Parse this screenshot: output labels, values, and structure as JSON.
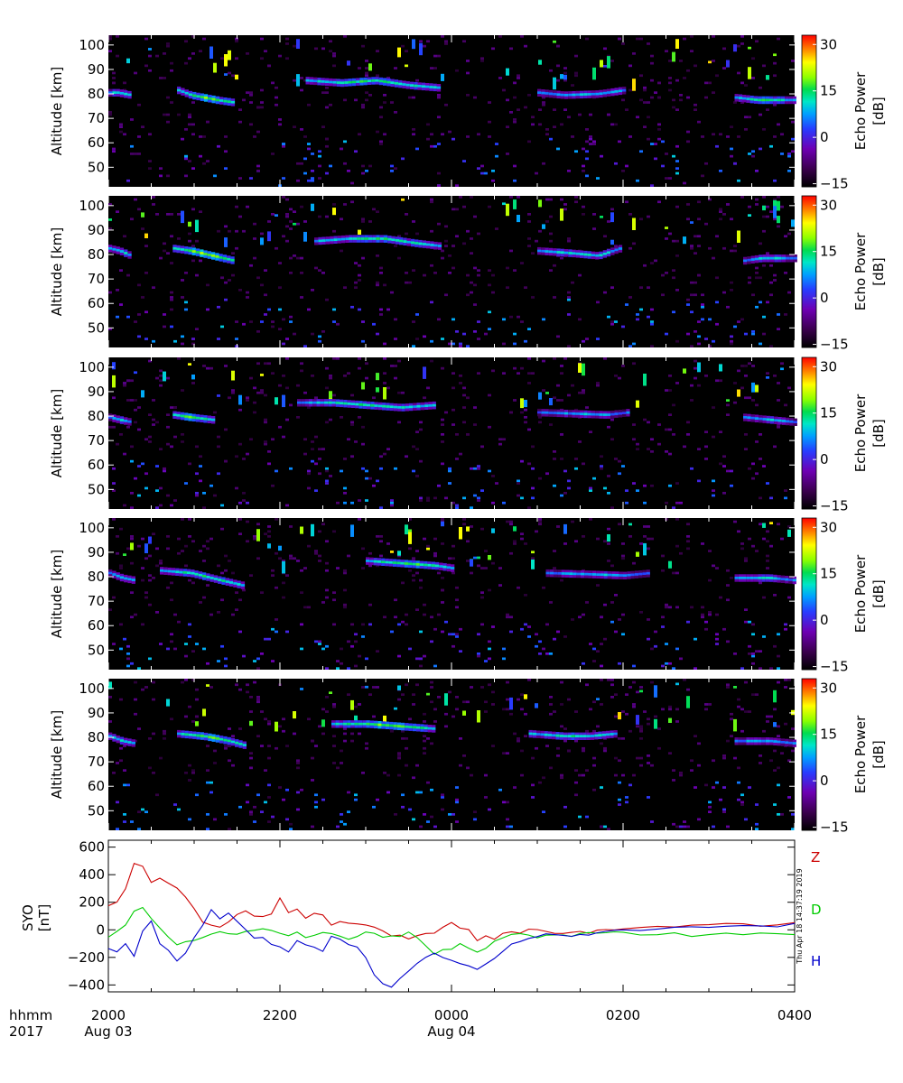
{
  "chart_data": [
    {
      "type": "heatmap",
      "panel": 1,
      "ylabel": "Altitude [km]",
      "yticks": [
        50,
        60,
        70,
        80,
        90,
        100
      ],
      "ylim": [
        42,
        104
      ],
      "colorbar": {
        "label_line1": "Echo Power",
        "label_line2": "[dB]",
        "ticks": [
          -15,
          0,
          15,
          30
        ],
        "range": [
          -16,
          33
        ]
      },
      "layers": [
        {
          "t": [
            0.0,
            0.1,
            0.25
          ],
          "alt": [
            81,
            81,
            80
          ],
          "power": 12
        },
        {
          "t": [
            0.8,
            0.95,
            1.25,
            1.45
          ],
          "alt": [
            82,
            80,
            78,
            77
          ],
          "power": 18
        },
        {
          "t": [
            2.3,
            2.7,
            3.1,
            3.5,
            3.85
          ],
          "alt": [
            86,
            85,
            86,
            84,
            83
          ],
          "power": 15
        },
        {
          "t": [
            5.0,
            5.3,
            5.7,
            6.0
          ],
          "alt": [
            81,
            80,
            80.5,
            82
          ],
          "power": 10
        },
        {
          "t": [
            7.3,
            7.55,
            8.0
          ],
          "alt": [
            79,
            78,
            78
          ],
          "power": 14
        }
      ]
    },
    {
      "type": "heatmap",
      "panel": 2,
      "ylabel": "Altitude [km]",
      "yticks": [
        50,
        60,
        70,
        80,
        90,
        100
      ],
      "ylim": [
        42,
        104
      ],
      "colorbar": {
        "label_line1": "Echo Power",
        "label_line2": "[dB]",
        "ticks": [
          -15,
          0,
          15,
          30
        ],
        "range": [
          -16,
          33
        ]
      },
      "layers": [
        {
          "t": [
            0.0,
            0.12,
            0.25
          ],
          "alt": [
            83,
            82,
            80
          ],
          "power": 12
        },
        {
          "t": [
            0.75,
            0.95,
            1.2,
            1.45
          ],
          "alt": [
            83,
            82,
            80,
            78
          ],
          "power": 20
        },
        {
          "t": [
            2.4,
            2.8,
            3.2,
            3.6,
            3.85
          ],
          "alt": [
            86,
            87,
            87,
            85,
            84
          ],
          "power": 14
        },
        {
          "t": [
            5.0,
            5.4,
            5.7,
            5.95
          ],
          "alt": [
            82,
            81,
            80,
            83
          ],
          "power": 12
        },
        {
          "t": [
            7.4,
            7.6,
            8.0
          ],
          "alt": [
            78,
            79,
            79
          ],
          "power": 10
        }
      ]
    },
    {
      "type": "heatmap",
      "panel": 3,
      "ylabel": "Altitude [km]",
      "yticks": [
        50,
        60,
        70,
        80,
        90,
        100
      ],
      "ylim": [
        42,
        104
      ],
      "colorbar": {
        "label_line1": "Echo Power",
        "label_line2": "[dB]",
        "ticks": [
          -15,
          0,
          15,
          30
        ],
        "range": [
          -16,
          33
        ]
      },
      "layers": [
        {
          "t": [
            0.0,
            0.12,
            0.25
          ],
          "alt": [
            80,
            79,
            78
          ],
          "power": 10
        },
        {
          "t": [
            0.75,
            0.95,
            1.2
          ],
          "alt": [
            81,
            80,
            79
          ],
          "power": 18
        },
        {
          "t": [
            2.2,
            2.6,
            3.0,
            3.4,
            3.8
          ],
          "alt": [
            86,
            86,
            85,
            84,
            85
          ],
          "power": 13
        },
        {
          "t": [
            5.0,
            5.4,
            5.8,
            6.05
          ],
          "alt": [
            82,
            81.5,
            81,
            82
          ],
          "power": 8
        },
        {
          "t": [
            7.4,
            7.7,
            8.0
          ],
          "alt": [
            80,
            79,
            78
          ],
          "power": 9
        }
      ]
    },
    {
      "type": "heatmap",
      "panel": 4,
      "ylabel": "Altitude [km]",
      "yticks": [
        50,
        60,
        70,
        80,
        90,
        100
      ],
      "ylim": [
        42,
        104
      ],
      "colorbar": {
        "label_line1": "Echo Power",
        "label_line2": "[dB]",
        "ticks": [
          -15,
          0,
          15,
          30
        ],
        "range": [
          -16,
          33
        ]
      },
      "layers": [
        {
          "t": [
            0.0,
            0.15,
            0.3
          ],
          "alt": [
            82,
            80,
            79
          ],
          "power": 10
        },
        {
          "t": [
            0.6,
            0.95,
            1.3,
            1.55
          ],
          "alt": [
            83,
            82,
            79,
            77
          ],
          "power": 15
        },
        {
          "t": [
            3.0,
            3.4,
            3.8,
            4.0
          ],
          "alt": [
            87,
            86,
            85,
            84
          ],
          "power": 16
        },
        {
          "t": [
            5.1,
            5.6,
            6.0,
            6.3
          ],
          "alt": [
            82,
            81.5,
            81,
            82
          ],
          "power": 9
        },
        {
          "t": [
            7.3,
            7.7,
            8.0
          ],
          "alt": [
            80,
            80,
            79
          ],
          "power": 10
        }
      ]
    },
    {
      "type": "heatmap",
      "panel": 5,
      "ylabel": "Altitude [km]",
      "yticks": [
        50,
        60,
        70,
        80,
        90,
        100
      ],
      "ylim": [
        42,
        104
      ],
      "colorbar": {
        "label_line1": "Echo Power",
        "label_line2": "[dB]",
        "ticks": [
          -15,
          0,
          15,
          30
        ],
        "range": [
          -16,
          33
        ]
      },
      "layers": [
        {
          "t": [
            0.0,
            0.15,
            0.3
          ],
          "alt": [
            81,
            79,
            78
          ],
          "power": 11
        },
        {
          "t": [
            0.8,
            1.1,
            1.4,
            1.6
          ],
          "alt": [
            82,
            81,
            79,
            77
          ],
          "power": 17
        },
        {
          "t": [
            2.6,
            3.0,
            3.4,
            3.8
          ],
          "alt": [
            86,
            86,
            85,
            84
          ],
          "power": 18
        },
        {
          "t": [
            4.9,
            5.3,
            5.6,
            5.9
          ],
          "alt": [
            82,
            81,
            81,
            82
          ],
          "power": 13
        },
        {
          "t": [
            7.3,
            7.7,
            8.0
          ],
          "alt": [
            79,
            79,
            78
          ],
          "power": 9
        }
      ]
    },
    {
      "type": "line",
      "ylabel_line1": "SYO",
      "ylabel_line2": "[nT]",
      "yticks": [
        -400,
        -200,
        0,
        200,
        400,
        600
      ],
      "ylim": [
        -450,
        650
      ],
      "x_unit": "hours after 2000 UT, 2017 Aug 03",
      "series": [
        {
          "name": "Z",
          "color": "#cc0000",
          "x": [
            0,
            0.1,
            0.2,
            0.3,
            0.4,
            0.5,
            0.6,
            0.7,
            0.8,
            0.9,
            1.0,
            1.1,
            1.2,
            1.3,
            1.4,
            1.5,
            1.6,
            1.7,
            1.8,
            1.9,
            2.0,
            2.1,
            2.2,
            2.3,
            2.4,
            2.5,
            2.6,
            2.7,
            2.8,
            2.9,
            3.0,
            3.1,
            3.2,
            3.3,
            3.4,
            3.5,
            3.6,
            3.7,
            3.8,
            3.9,
            4.0,
            4.1,
            4.2,
            4.3,
            4.4,
            4.5,
            4.6,
            4.7,
            4.8,
            4.9,
            5.0,
            5.1,
            5.2,
            5.3,
            5.4,
            5.5,
            5.6,
            5.7,
            5.8,
            5.9,
            6.0,
            6.2,
            6.4,
            6.6,
            6.8,
            7.0,
            7.2,
            7.4,
            7.6,
            7.8,
            8.0
          ],
          "y": [
            170,
            200,
            300,
            480,
            460,
            350,
            380,
            330,
            300,
            230,
            150,
            60,
            40,
            20,
            60,
            110,
            130,
            100,
            90,
            110,
            230,
            120,
            150,
            80,
            120,
            110,
            40,
            60,
            40,
            40,
            30,
            20,
            -10,
            -50,
            -30,
            -70,
            -40,
            -20,
            -30,
            20,
            60,
            10,
            0,
            -80,
            -50,
            -60,
            -20,
            -10,
            -30,
            0,
            10,
            -10,
            -20,
            -30,
            -20,
            -20,
            -20,
            -10,
            0,
            0,
            10,
            10,
            20,
            20,
            30,
            40,
            40,
            50,
            30,
            40,
            50
          ]
        },
        {
          "name": "D",
          "color": "#00cc00",
          "x": [
            0,
            0.1,
            0.2,
            0.3,
            0.4,
            0.5,
            0.6,
            0.7,
            0.8,
            0.9,
            1.0,
            1.1,
            1.2,
            1.3,
            1.4,
            1.5,
            1.6,
            1.7,
            1.8,
            1.9,
            2.0,
            2.1,
            2.2,
            2.3,
            2.4,
            2.5,
            2.6,
            2.7,
            2.8,
            2.9,
            3.0,
            3.1,
            3.2,
            3.3,
            3.4,
            3.5,
            3.6,
            3.7,
            3.8,
            3.9,
            4.0,
            4.1,
            4.2,
            4.3,
            4.4,
            4.5,
            4.6,
            4.7,
            4.8,
            4.9,
            5.0,
            5.1,
            5.2,
            5.3,
            5.4,
            5.5,
            5.6,
            5.7,
            5.8,
            5.9,
            6.0,
            6.2,
            6.4,
            6.6,
            6.8,
            7.0,
            7.2,
            7.4,
            7.6,
            7.8,
            8.0
          ],
          "y": [
            -60,
            -20,
            40,
            130,
            170,
            90,
            20,
            -60,
            -100,
            -80,
            -70,
            -50,
            -30,
            -20,
            -20,
            -30,
            -10,
            0,
            10,
            -10,
            -30,
            -40,
            -20,
            -50,
            -40,
            -20,
            -30,
            -40,
            -60,
            -40,
            -20,
            -30,
            -60,
            -50,
            -40,
            -20,
            -60,
            -120,
            -180,
            -150,
            -140,
            -100,
            -130,
            -160,
            -130,
            -80,
            -60,
            -40,
            -20,
            -40,
            -60,
            -30,
            -30,
            -40,
            -40,
            -20,
            -20,
            -30,
            -30,
            -20,
            -20,
            -30,
            -30,
            -30,
            -40,
            -40,
            -30,
            -40,
            -30,
            -20,
            -30
          ]
        },
        {
          "name": "H",
          "color": "#0000cc",
          "x": [
            0,
            0.1,
            0.2,
            0.3,
            0.4,
            0.5,
            0.6,
            0.7,
            0.8,
            0.9,
            1.0,
            1.1,
            1.2,
            1.3,
            1.4,
            1.5,
            1.6,
            1.7,
            1.8,
            1.9,
            2.0,
            2.1,
            2.2,
            2.3,
            2.4,
            2.5,
            2.6,
            2.7,
            2.8,
            2.9,
            3.0,
            3.1,
            3.2,
            3.3,
            3.4,
            3.5,
            3.6,
            3.7,
            3.8,
            3.9,
            4.0,
            4.1,
            4.2,
            4.3,
            4.4,
            4.5,
            4.6,
            4.7,
            4.8,
            4.9,
            5.0,
            5.1,
            5.2,
            5.3,
            5.4,
            5.5,
            5.6,
            5.7,
            5.8,
            5.9,
            6.0,
            6.2,
            6.4,
            6.6,
            6.8,
            7.0,
            7.2,
            7.4,
            7.6,
            7.8,
            8.0
          ],
          "y": [
            -130,
            -160,
            -100,
            -200,
            0,
            60,
            -100,
            -140,
            -220,
            -160,
            -60,
            40,
            150,
            80,
            120,
            60,
            10,
            -60,
            -60,
            -100,
            -130,
            -160,
            -80,
            -110,
            -130,
            -160,
            -40,
            -60,
            -100,
            -120,
            -200,
            -320,
            -390,
            -420,
            -360,
            -300,
            -240,
            -200,
            -170,
            -200,
            -220,
            -240,
            -270,
            -290,
            -240,
            -200,
            -150,
            -110,
            -80,
            -60,
            -40,
            -30,
            -30,
            -40,
            -40,
            -30,
            -30,
            -20,
            -20,
            -10,
            0,
            0,
            0,
            10,
            20,
            20,
            30,
            30,
            20,
            30,
            40
          ]
        }
      ]
    }
  ],
  "xaxis": {
    "row_label_1": "hhmm",
    "row_label_2": "2017",
    "tick_labels": [
      "2000",
      "2200",
      "0000",
      "0200",
      "0400"
    ],
    "tick_hours": [
      0,
      2,
      4,
      6,
      8
    ],
    "date_labels": [
      "Aug 03",
      "Aug 04"
    ],
    "date_hours": [
      0,
      4
    ],
    "xlim": [
      0,
      8
    ]
  },
  "timestamp": "Thu Apr 18 14:37:19 2019"
}
